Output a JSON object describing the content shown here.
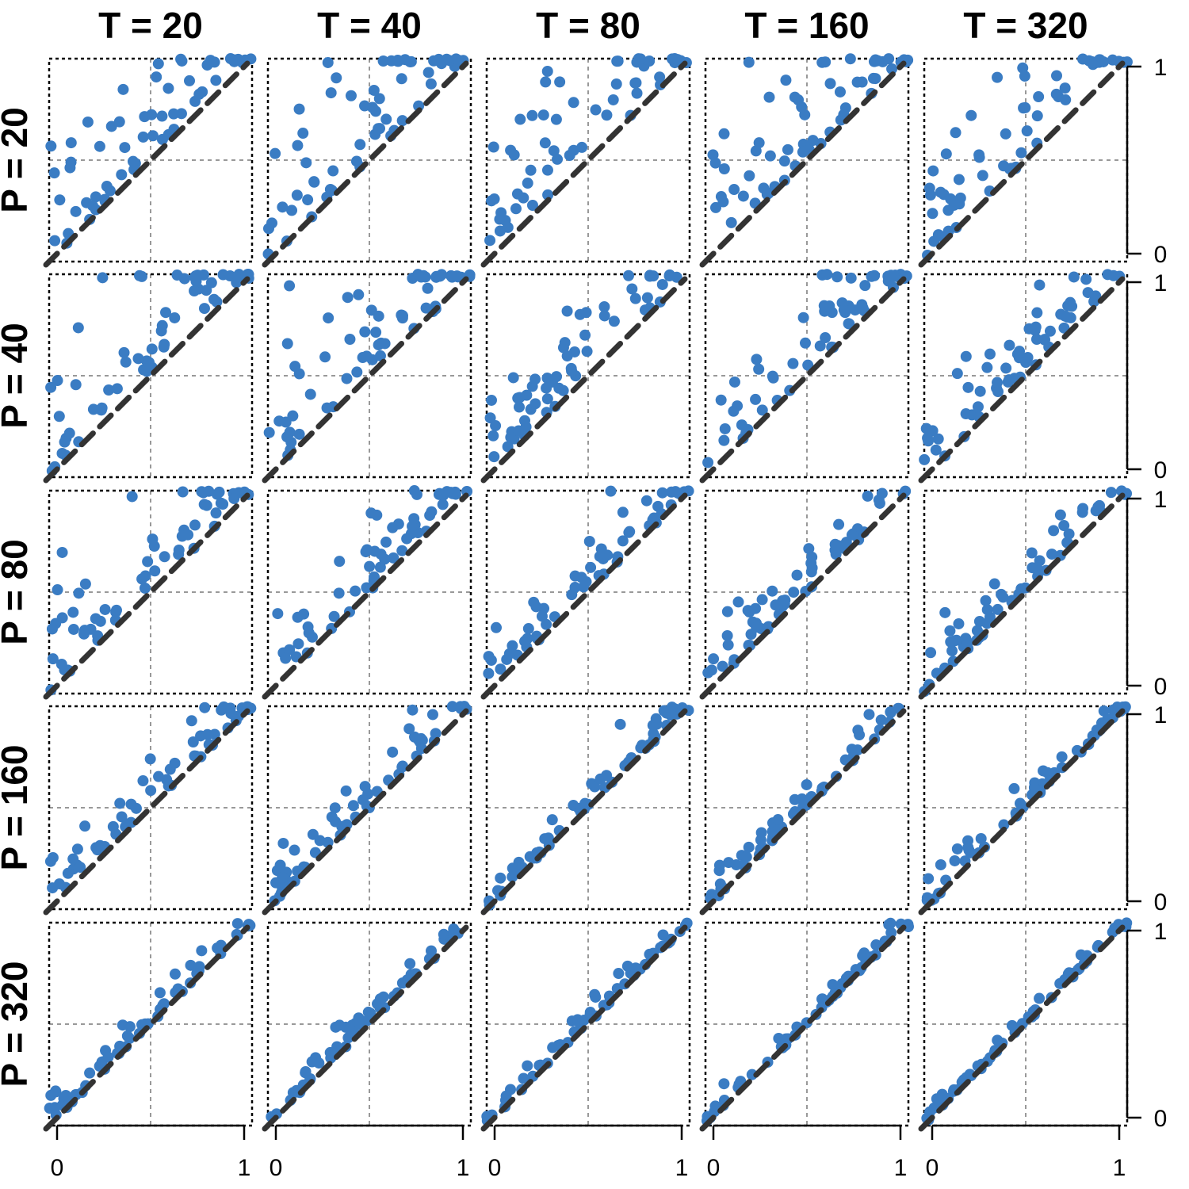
{
  "chart_data": {
    "type": "scatter",
    "layout": "small-multiples grid",
    "column_titles": [
      "T = 20",
      "T = 40",
      "T = 80",
      "T = 160",
      "T = 320"
    ],
    "row_titles": [
      "P = 20",
      "P = 40",
      "P = 80",
      "P = 160",
      "P = 320"
    ],
    "xlim": [
      0,
      1
    ],
    "ylim": [
      0,
      1
    ],
    "x_ticks": [
      0,
      1
    ],
    "y_ticks": [
      0,
      1
    ],
    "x_tick_labels": [
      "0",
      "1"
    ],
    "y_tick_labels": [
      "0",
      "1"
    ],
    "reference_line": "y = x (dashed)",
    "reference_gridlines": [
      0.5
    ],
    "grid": "dotted at 0.5",
    "point_color": "#3a7cc3",
    "reference_line_color": "#333333",
    "gridline_color": "#999999",
    "points_per_panel": 60,
    "panels": [
      {
        "row": 0,
        "col": 0,
        "noise": 0.34,
        "points_description": "scattered above diagonal"
      },
      {
        "row": 0,
        "col": 1,
        "noise": 0.33
      },
      {
        "row": 0,
        "col": 2,
        "noise": 0.32
      },
      {
        "row": 0,
        "col": 3,
        "noise": 0.31
      },
      {
        "row": 0,
        "col": 4,
        "noise": 0.3
      },
      {
        "row": 1,
        "col": 0,
        "noise": 0.28
      },
      {
        "row": 1,
        "col": 1,
        "noise": 0.27
      },
      {
        "row": 1,
        "col": 2,
        "noise": 0.25
      },
      {
        "row": 1,
        "col": 3,
        "noise": 0.23
      },
      {
        "row": 1,
        "col": 4,
        "noise": 0.21
      },
      {
        "row": 2,
        "col": 0,
        "noise": 0.22
      },
      {
        "row": 2,
        "col": 1,
        "noise": 0.18
      },
      {
        "row": 2,
        "col": 2,
        "noise": 0.14
      },
      {
        "row": 2,
        "col": 3,
        "noise": 0.12
      },
      {
        "row": 2,
        "col": 4,
        "noise": 0.1
      },
      {
        "row": 3,
        "col": 0,
        "noise": 0.12
      },
      {
        "row": 3,
        "col": 1,
        "noise": 0.1
      },
      {
        "row": 3,
        "col": 2,
        "noise": 0.08
      },
      {
        "row": 3,
        "col": 3,
        "noise": 0.07
      },
      {
        "row": 3,
        "col": 4,
        "noise": 0.06
      },
      {
        "row": 4,
        "col": 0,
        "noise": 0.06
      },
      {
        "row": 4,
        "col": 1,
        "noise": 0.05
      },
      {
        "row": 4,
        "col": 2,
        "noise": 0.045
      },
      {
        "row": 4,
        "col": 3,
        "noise": 0.035
      },
      {
        "row": 4,
        "col": 4,
        "noise": 0.03
      }
    ]
  }
}
